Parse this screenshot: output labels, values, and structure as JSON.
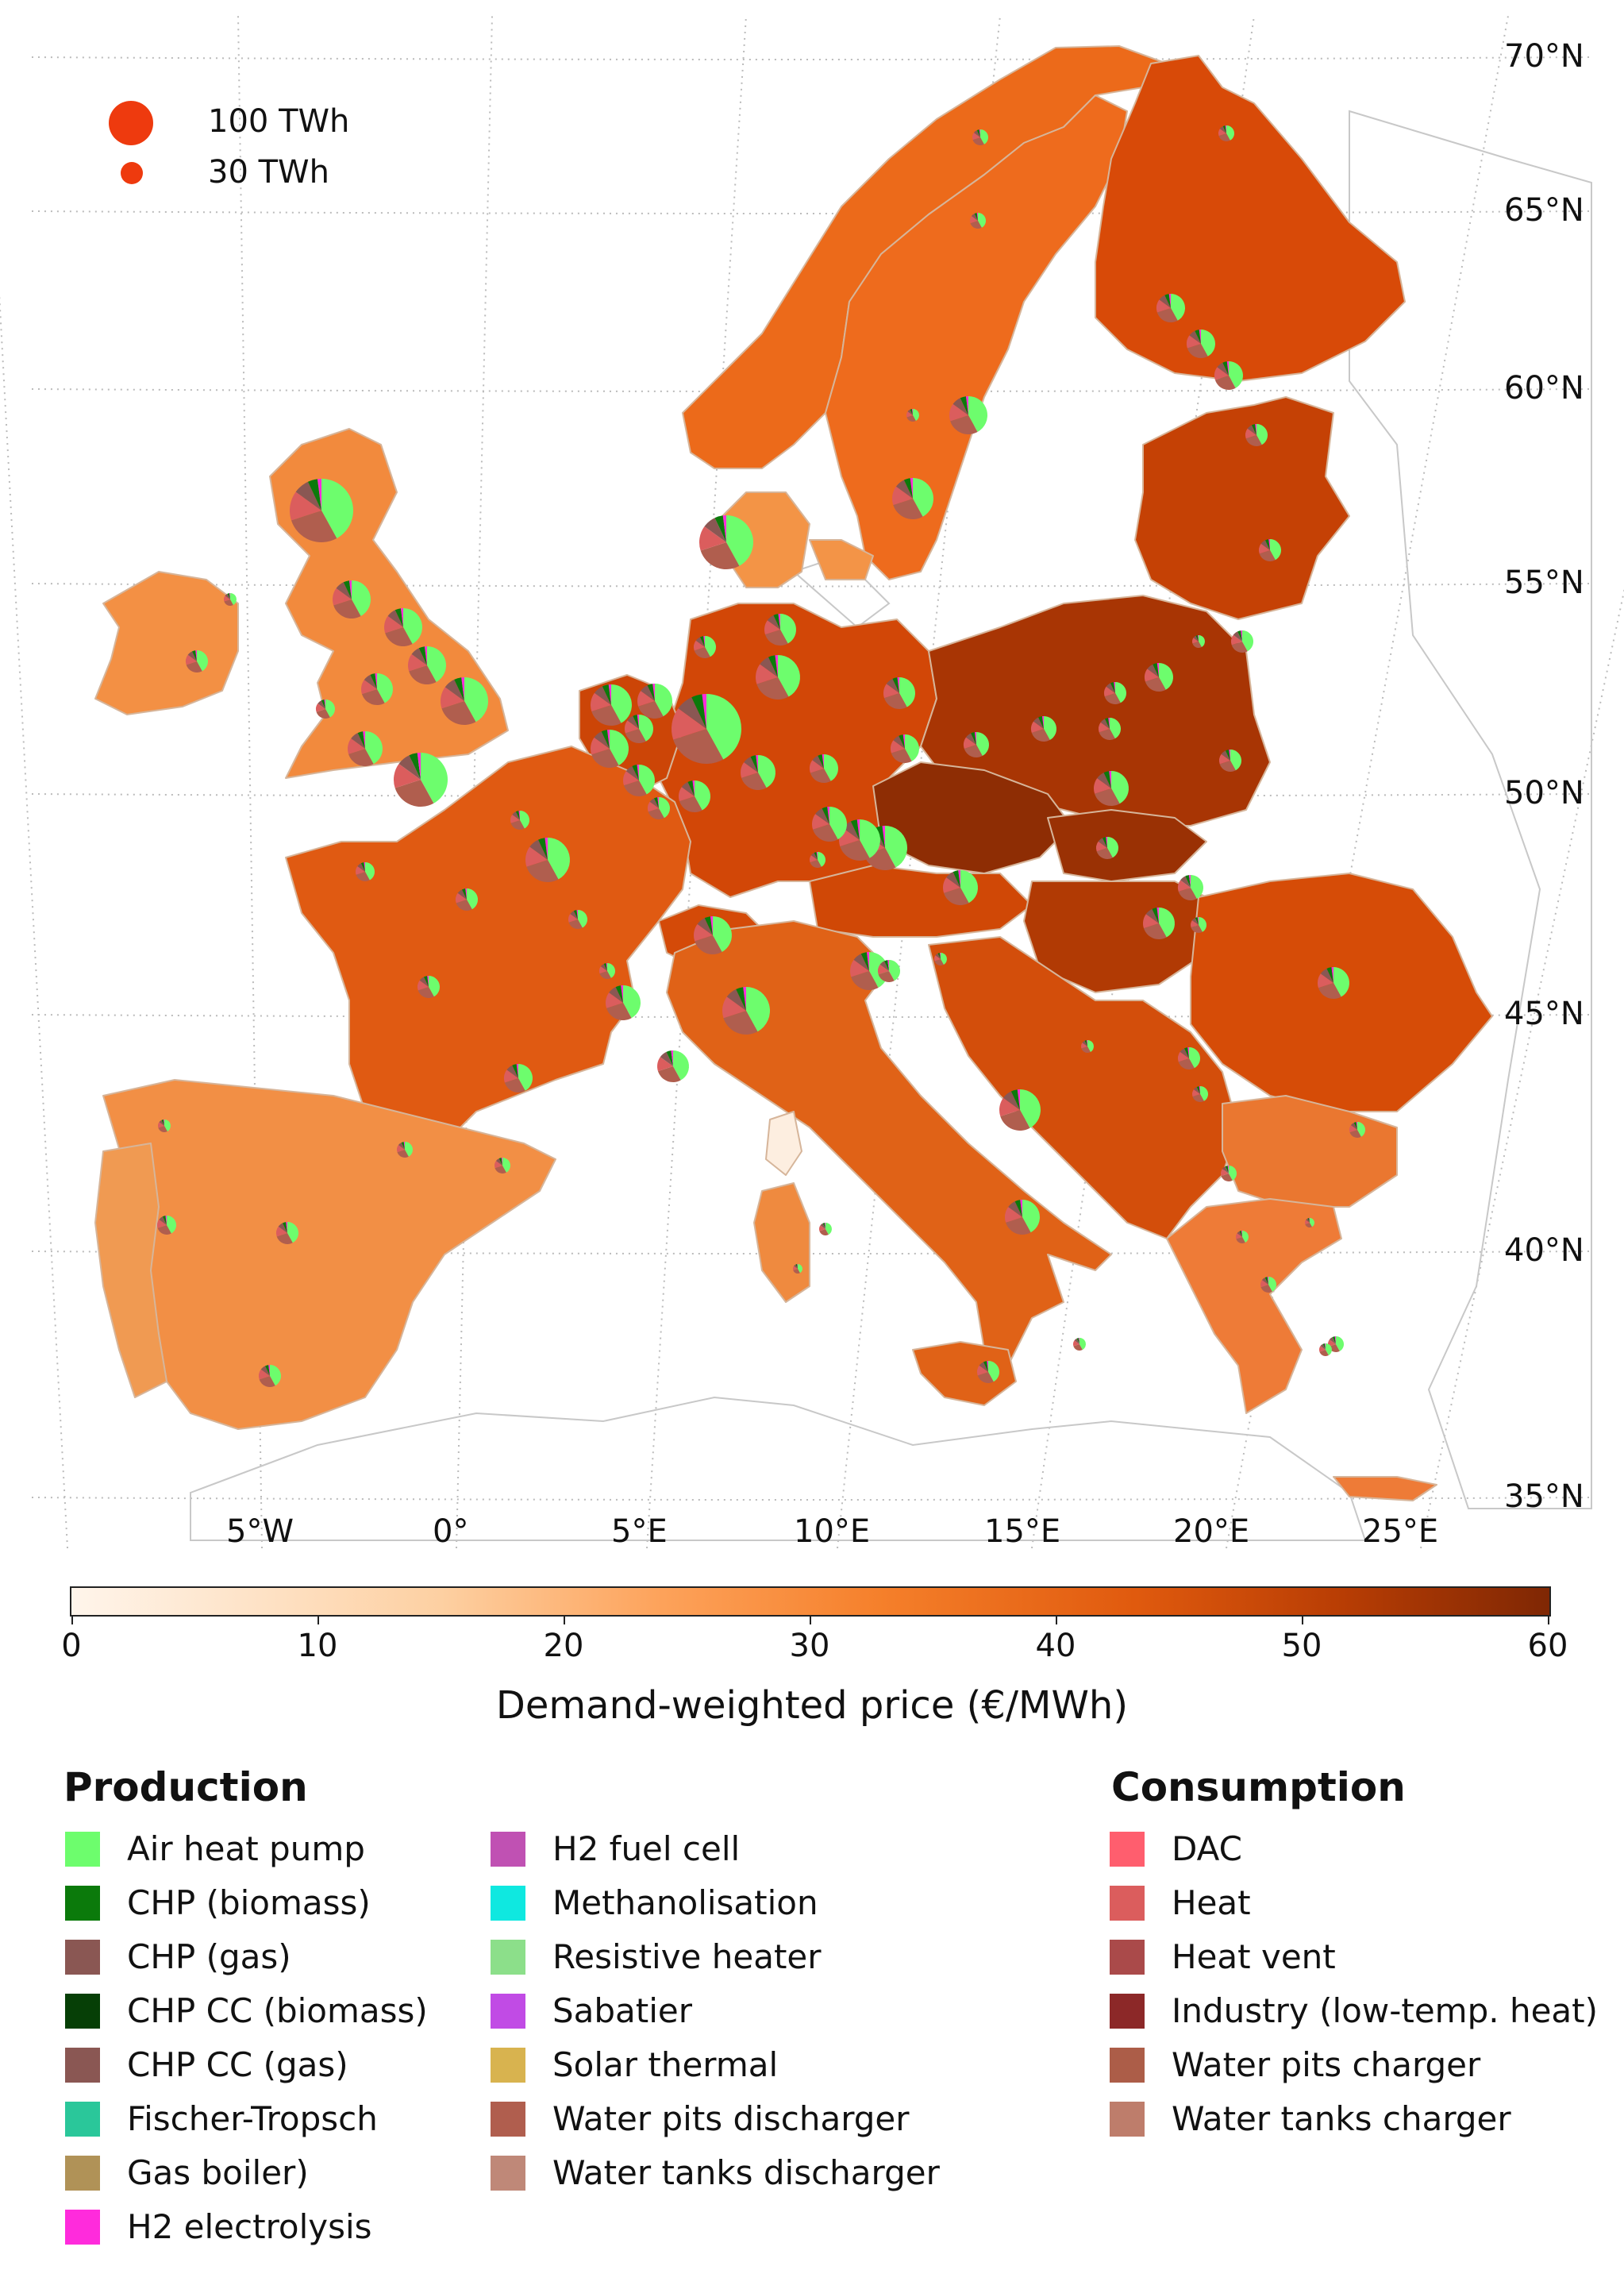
{
  "map": {
    "latitude_labels": [
      "70°N",
      "65°N",
      "60°N",
      "55°N",
      "50°N",
      "45°N",
      "40°N",
      "35°N"
    ],
    "longitude_labels": [
      "5°W",
      "0°",
      "5°E",
      "10°E",
      "15°E",
      "20°E",
      "25°E"
    ]
  },
  "size_legend": {
    "large": "100 TWh",
    "small": "30 TWh",
    "color": "#ee3a0e"
  },
  "colorbar": {
    "title": "Demand-weighted price (€/MWh)",
    "ticks": [
      "0",
      "10",
      "20",
      "30",
      "40",
      "50",
      "60"
    ],
    "range": [
      0,
      60
    ],
    "colors": [
      "#fff5eb",
      "#fdd0a2",
      "#fd8d3c",
      "#e8590d",
      "#a63603",
      "#7f2704"
    ]
  },
  "legend": {
    "production_heading": "Production",
    "consumption_heading": "Consumption",
    "production": [
      {
        "label": "Air heat pump",
        "color": "#6dfd6d"
      },
      {
        "label": "CHP (biomass)",
        "color": "#0b7a0b"
      },
      {
        "label": "CHP (gas)",
        "color": "#8a5753"
      },
      {
        "label": "CHP CC (biomass)",
        "color": "#063f06"
      },
      {
        "label": "CHP CC (gas)",
        "color": "#8a5753"
      },
      {
        "label": "Fischer-Tropsch",
        "color": "#2ac79a"
      },
      {
        "label": "Gas boiler)",
        "color": "#b09257"
      },
      {
        "label": "H2 electrolysis",
        "color": "#ff2bdc"
      },
      {
        "label": "H2 fuel cell",
        "color": "#c051b3"
      },
      {
        "label": "Methanolisation",
        "color": "#0fe8e0"
      },
      {
        "label": "Resistive heater",
        "color": "#8cdf8a"
      },
      {
        "label": "Sabatier",
        "color": "#c14be5"
      },
      {
        "label": "Solar thermal",
        "color": "#d8b34f"
      },
      {
        "label": "Water pits discharger",
        "color": "#b05e4e"
      },
      {
        "label": "Water tanks discharger",
        "color": "#bf8878"
      }
    ],
    "consumption": [
      {
        "label": "DAC",
        "color": "#ff5e6e"
      },
      {
        "label": "Heat",
        "color": "#db5d5d"
      },
      {
        "label": "Heat vent",
        "color": "#aa4a4a"
      },
      {
        "label": "Industry (low-temp. heat)",
        "color": "#8c2828"
      },
      {
        "label": "Water pits charger",
        "color": "#ac5d48"
      },
      {
        "label": "Water tanks charger",
        "color": "#be7d6b"
      }
    ]
  },
  "regions": [
    {
      "name": "Norway",
      "price": 33
    },
    {
      "name": "Sweden",
      "price": 33
    },
    {
      "name": "Finland",
      "price": 45
    },
    {
      "name": "Baltics",
      "price": 46
    },
    {
      "name": "United Kingdom",
      "price": 30
    },
    {
      "name": "Ireland",
      "price": 28
    },
    {
      "name": "Denmark",
      "price": 30
    },
    {
      "name": "Germany",
      "price": 46
    },
    {
      "name": "Poland",
      "price": 54
    },
    {
      "name": "Czechia",
      "price": 58
    },
    {
      "name": "Slovakia",
      "price": 56
    },
    {
      "name": "Hungary",
      "price": 50
    },
    {
      "name": "Austria",
      "price": 45
    },
    {
      "name": "France",
      "price": 42
    },
    {
      "name": "Spain",
      "price": 27
    },
    {
      "name": "Portugal",
      "price": 26
    },
    {
      "name": "Italy",
      "price": 38
    },
    {
      "name": "Balkans",
      "price": 42
    },
    {
      "name": "Romania",
      "price": 43
    },
    {
      "name": "Bulgaria",
      "price": 38
    },
    {
      "name": "Greece",
      "price": 36
    },
    {
      "name": "Corsica",
      "price": 5
    }
  ]
}
